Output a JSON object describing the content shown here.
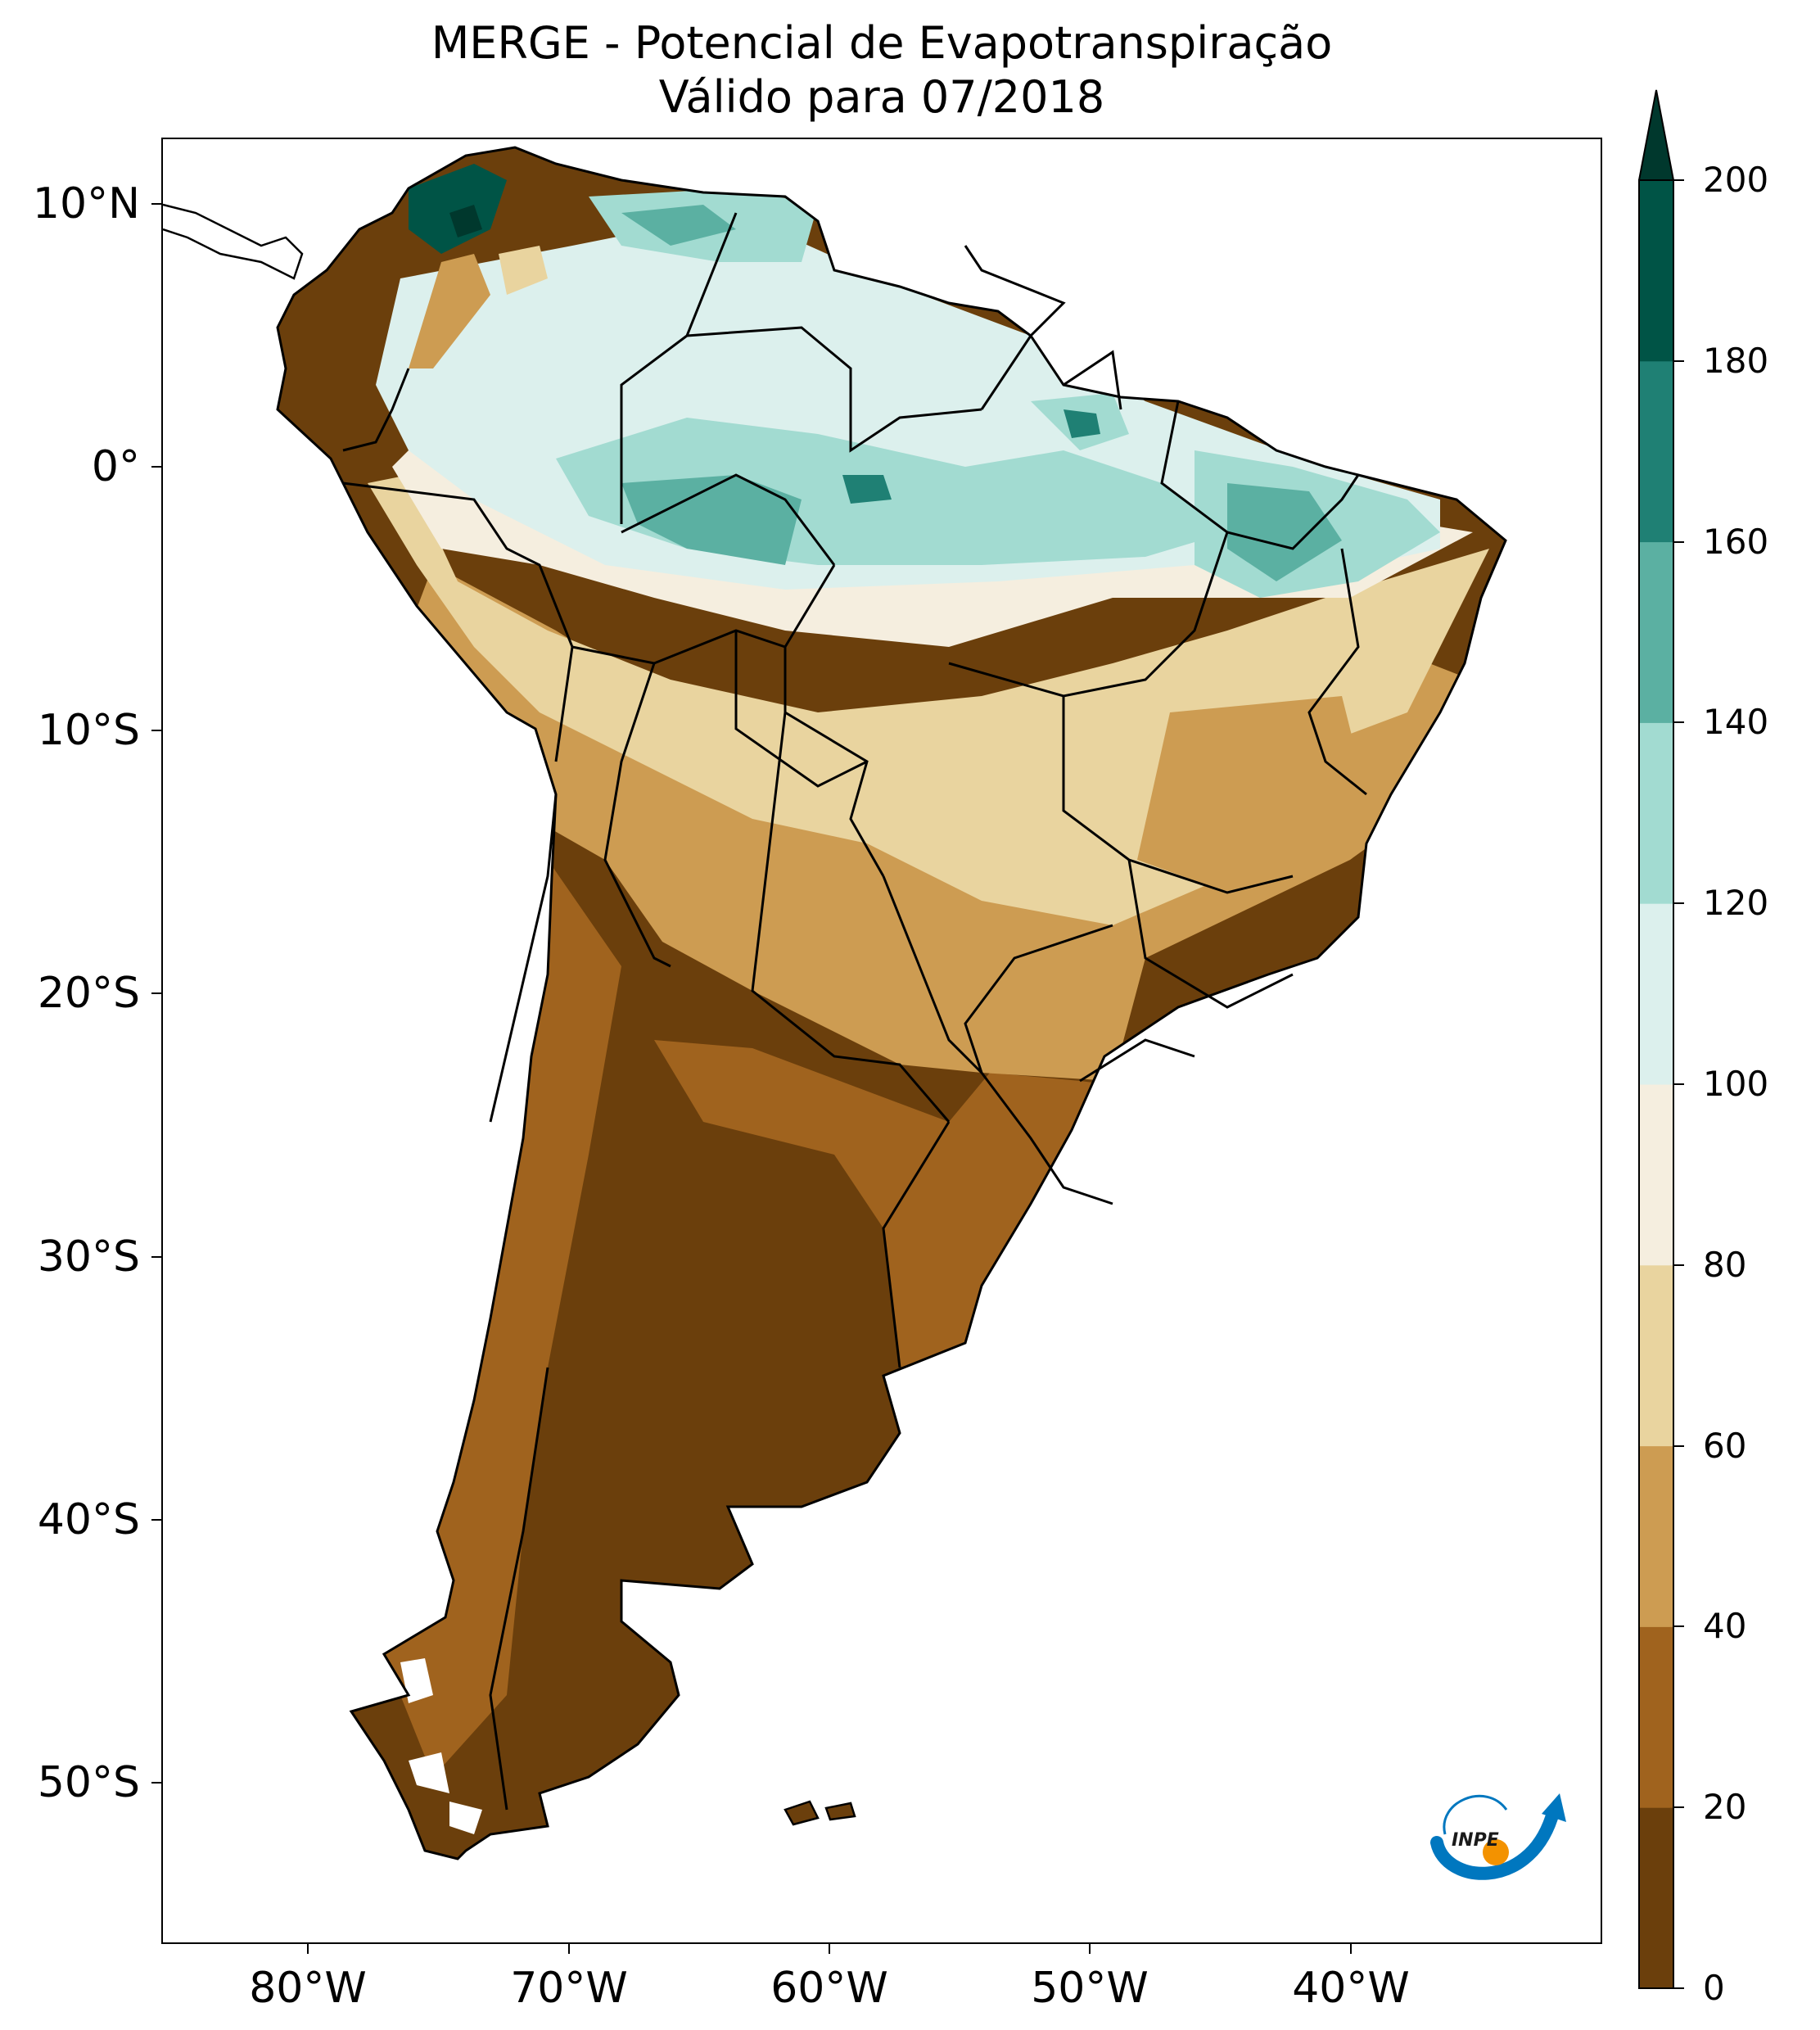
{
  "title": {
    "line1": "MERGE - Potencial de Evapotranspiração",
    "line2": "Válido para 07/2018"
  },
  "map": {
    "lat_labels": [
      "10°N",
      "0°",
      "10°S",
      "20°S",
      "30°S",
      "40°S",
      "50°S"
    ],
    "lon_labels": [
      "80°W",
      "70°W",
      "60°W",
      "50°W",
      "40°W"
    ],
    "region": "South America"
  },
  "colorbar": {
    "ticks": [
      "0",
      "20",
      "40",
      "60",
      "80",
      "100",
      "120",
      "140",
      "160",
      "180",
      "200"
    ],
    "extend": "max",
    "colors": [
      "#6b3f0c",
      "#a0631e",
      "#cd9c52",
      "#e9d49f",
      "#f5eedf",
      "#dcf0ed",
      "#a2dbd1",
      "#5bb0a2",
      "#1f8074",
      "#005446",
      "#00382d"
    ]
  },
  "logo": {
    "text": "INPE",
    "colors": {
      "arc": "#0077bf",
      "dot": "#f39200"
    }
  }
}
